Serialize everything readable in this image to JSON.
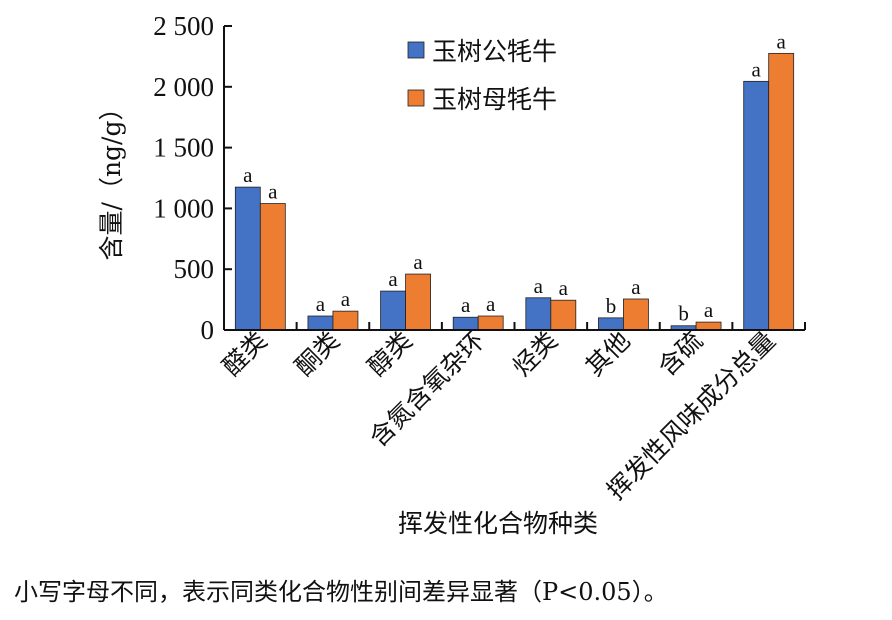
{
  "chart_data": {
    "type": "bar",
    "ylabel": "含量/（ng/g）",
    "xlabel": "挥发性化合物种类",
    "ylim": [
      0,
      2500
    ],
    "yticks": [
      0,
      500,
      1000,
      1500,
      2000,
      2500
    ],
    "ytick_labels": [
      "0",
      "500",
      "1 000",
      "1 500",
      "2 000",
      "2 500"
    ],
    "categories": [
      "醛类",
      "酮类",
      "醇类",
      "含氮含氧杂环",
      "烃类",
      "其他",
      "含硫",
      "挥发性风味成分总量"
    ],
    "series": [
      {
        "name": "玉树公牦牛",
        "color": "#4472C4",
        "values": [
          1175,
          115,
          320,
          105,
          265,
          100,
          35,
          2045
        ],
        "sig": [
          "a",
          "a",
          "a",
          "a",
          "a",
          "b",
          "b",
          "a"
        ]
      },
      {
        "name": "玉树母牦牛",
        "color": "#ED7D31",
        "values": [
          1040,
          155,
          460,
          115,
          245,
          255,
          65,
          2275
        ],
        "sig": [
          "a",
          "a",
          "a",
          "a",
          "a",
          "a",
          "a",
          "a"
        ]
      }
    ],
    "legend_position": "top-right",
    "grid": false
  },
  "footnote": "小写字母不同，表示同类化合物性别间差异显著（P<0.05）。"
}
